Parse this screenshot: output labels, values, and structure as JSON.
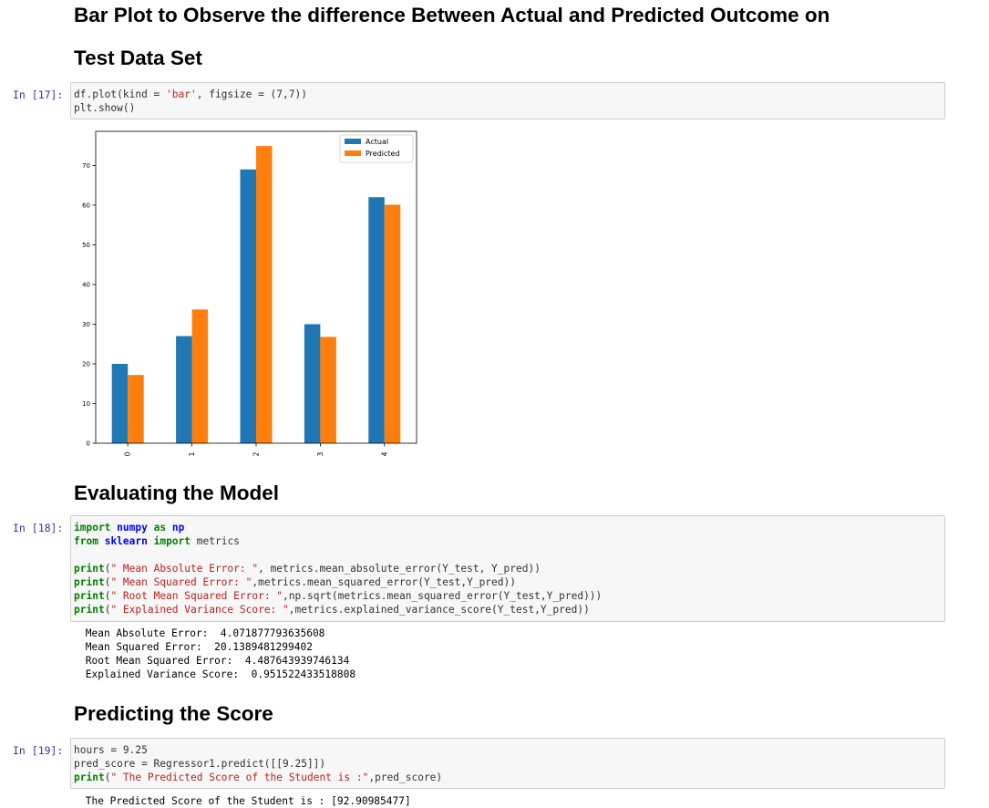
{
  "headings": {
    "barplot_line1": "Bar Plot to Observe the difference Between Actual and Predicted Outcome on",
    "barplot_line2": "Test Data Set",
    "evaluating": "Evaluating the Model",
    "predicting": "Predicting the Score"
  },
  "cells": [
    {
      "prompt": "In [17]:",
      "lines": [
        [
          [
            "plain",
            "df.plot(kind = "
          ],
          [
            "str",
            "'bar'"
          ],
          [
            "plain",
            ", figsize = (7,7))"
          ]
        ],
        [
          [
            "plain",
            "plt.show()"
          ]
        ]
      ]
    },
    {
      "prompt": "In [18]:",
      "lines": [
        [
          [
            "kw",
            "import"
          ],
          [
            "plain",
            " "
          ],
          [
            "nm",
            "numpy"
          ],
          [
            "plain",
            " "
          ],
          [
            "kw",
            "as"
          ],
          [
            "plain",
            " "
          ],
          [
            "nm",
            "np"
          ]
        ],
        [
          [
            "kw",
            "from"
          ],
          [
            "plain",
            " "
          ],
          [
            "nm",
            "sklearn"
          ],
          [
            "plain",
            " "
          ],
          [
            "kw",
            "import"
          ],
          [
            "plain",
            " metrics"
          ]
        ],
        [
          [
            "plain",
            ""
          ]
        ],
        [
          [
            "kw",
            "print"
          ],
          [
            "plain",
            "("
          ],
          [
            "str",
            "\" Mean Absolute Error: \""
          ],
          [
            "plain",
            ", metrics.mean_absolute_error(Y_test, Y_pred))"
          ]
        ],
        [
          [
            "kw",
            "print"
          ],
          [
            "plain",
            "("
          ],
          [
            "str",
            "\" Mean Squared Error: \""
          ],
          [
            "plain",
            ",metrics.mean_squared_error(Y_test,Y_pred))"
          ]
        ],
        [
          [
            "kw",
            "print"
          ],
          [
            "plain",
            "("
          ],
          [
            "str",
            "\" Root Mean Squared Error: \""
          ],
          [
            "plain",
            ",np.sqrt(metrics.mean_squared_error(Y_test,Y_pred)))"
          ]
        ],
        [
          [
            "kw",
            "print"
          ],
          [
            "plain",
            "("
          ],
          [
            "str",
            "\" Explained Variance Score: \""
          ],
          [
            "plain",
            ",metrics.explained_variance_score(Y_test,Y_pred))"
          ]
        ]
      ],
      "output": [
        " Mean Absolute Error:  4.071877793635608",
        " Mean Squared Error:  20.1389481299402",
        " Root Mean Squared Error:  4.487643939746134",
        " Explained Variance Score:  0.951522433518808"
      ]
    },
    {
      "prompt": "In [19]:",
      "lines": [
        [
          [
            "plain",
            "hours = 9.25"
          ]
        ],
        [
          [
            "plain",
            "pred_score = Regressor1.predict([[9.25]])"
          ]
        ],
        [
          [
            "kw",
            "print"
          ],
          [
            "plain",
            "("
          ],
          [
            "str",
            "\" The Predicted Score of the Student is :\""
          ],
          [
            "plain",
            ",pred_score)"
          ]
        ]
      ],
      "output": [
        " The Predicted Score of the Student is : [92.90985477]"
      ]
    }
  ],
  "chart_data": {
    "type": "bar",
    "categories": [
      "0",
      "1",
      "2",
      "3",
      "4"
    ],
    "series": [
      {
        "name": "Actual",
        "values": [
          20,
          27,
          69,
          30,
          62
        ],
        "color": "#1f77b4"
      },
      {
        "name": "Predicted",
        "values": [
          17.2,
          33.7,
          74.9,
          26.8,
          60.1
        ],
        "color": "#ff7f0e"
      }
    ],
    "yticks": [
      0,
      10,
      20,
      30,
      40,
      50,
      60,
      70
    ],
    "ylim": [
      0,
      78.6
    ],
    "legend": "top-right",
    "grid": false
  }
}
